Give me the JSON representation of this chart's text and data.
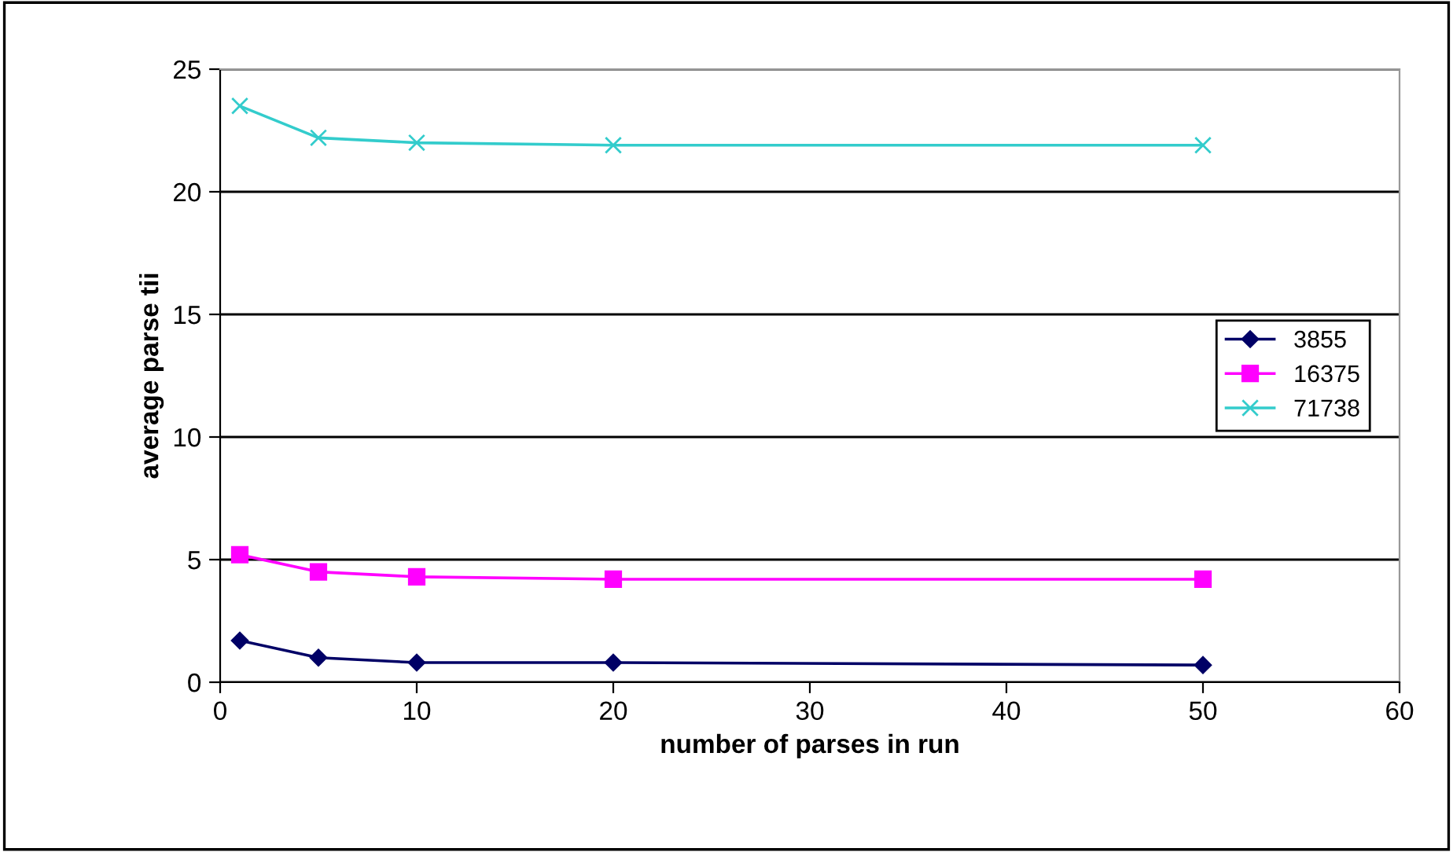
{
  "chart_data": {
    "type": "line",
    "xlabel": "number of parses in run",
    "ylabel": "average parse tii",
    "x": [
      1,
      5,
      10,
      20,
      50
    ],
    "series": [
      {
        "name": "3855",
        "color": "#000066",
        "marker": "diamond",
        "values": [
          1.7,
          1.0,
          0.8,
          0.8,
          0.7
        ]
      },
      {
        "name": "16375",
        "color": "#ff00ff",
        "marker": "square",
        "values": [
          5.2,
          4.5,
          4.3,
          4.2,
          4.2
        ]
      },
      {
        "name": "71738",
        "color": "#33cccc",
        "marker": "cross",
        "values": [
          23.5,
          22.2,
          22.0,
          21.9,
          21.9
        ]
      }
    ],
    "xlim": [
      0,
      60
    ],
    "xticks": [
      0,
      10,
      20,
      30,
      40,
      50,
      60
    ],
    "ylim": [
      0,
      25
    ],
    "yticks": [
      0,
      5,
      10,
      15,
      20,
      25
    ],
    "grid": "y",
    "legend": "right",
    "line_style": "solid"
  }
}
